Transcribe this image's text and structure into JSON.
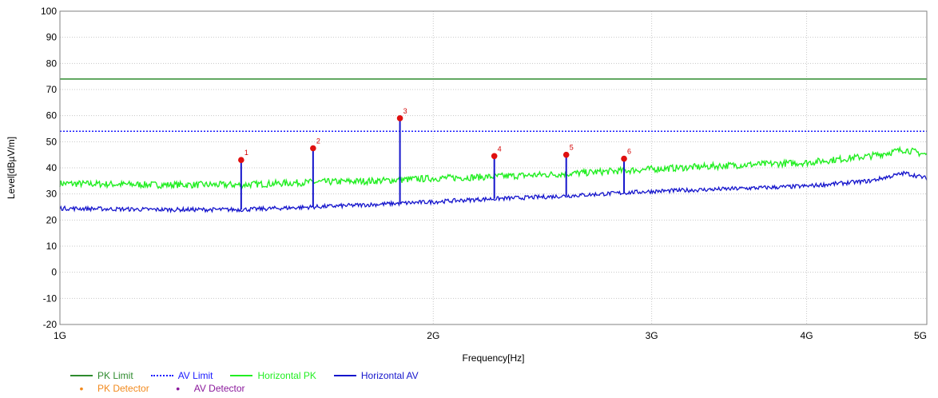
{
  "chart_data": {
    "type": "line",
    "xlabel": "Frequency[Hz]",
    "ylabel": "Level[dBµV/m]",
    "x_scale": "log",
    "xlim": [
      1000000000,
      5000000000
    ],
    "ylim": [
      -20,
      100
    ],
    "y_ticks": [
      100,
      90,
      80,
      70,
      60,
      50,
      40,
      30,
      20,
      10,
      0,
      -10,
      -20
    ],
    "x_ticks": [
      {
        "value": 1000000000,
        "label": "1G"
      },
      {
        "value": 2000000000,
        "label": "2G"
      },
      {
        "value": 3000000000,
        "label": "3G"
      },
      {
        "value": 4000000000,
        "label": "4G"
      },
      {
        "value": 5000000000,
        "label": "5G"
      }
    ],
    "grid": true,
    "legend_position": "bottom-left",
    "series": [
      {
        "name": "PK Limit",
        "color": "#2e8b2e",
        "style": "solid",
        "x": [
          1000000000,
          5000000000
        ],
        "values": [
          74,
          74
        ]
      },
      {
        "name": "AV Limit",
        "color": "#1a1aff",
        "style": "dotted",
        "x": [
          1000000000,
          5000000000
        ],
        "values": [
          54,
          54
        ]
      },
      {
        "name": "Horizontal PK",
        "color": "#22ee22",
        "style": "solid",
        "x": [
          1000000000,
          1200000000,
          1400000000,
          1600000000,
          1800000000,
          2000000000,
          2200000000,
          2500000000,
          3000000000,
          3500000000,
          4000000000,
          4500000000,
          4800000000,
          5000000000
        ],
        "values": [
          34,
          33.5,
          33.5,
          34.5,
          35,
          36,
          36.5,
          37.5,
          39.5,
          41,
          42,
          44.5,
          47,
          45
        ]
      },
      {
        "name": "Horizontal AV",
        "color": "#1515cc",
        "style": "solid",
        "x": [
          1000000000,
          1200000000,
          1400000000,
          1600000000,
          1800000000,
          2000000000,
          2200000000,
          2500000000,
          3000000000,
          3500000000,
          4000000000,
          4500000000,
          4800000000,
          5000000000
        ],
        "values": [
          24.5,
          24,
          24,
          25,
          26,
          27,
          28,
          29,
          31,
          32,
          33,
          35,
          38,
          36
        ]
      }
    ],
    "spikes": [
      {
        "label": "1",
        "x": 1400000000,
        "value": 43
      },
      {
        "label": "2",
        "x": 1600000000,
        "value": 47.5
      },
      {
        "label": "3",
        "x": 1880000000,
        "value": 59
      },
      {
        "label": "4",
        "x": 2240000000,
        "value": 44.5
      },
      {
        "label": "5",
        "x": 2560000000,
        "value": 45
      },
      {
        "label": "6",
        "x": 2850000000,
        "value": 43.5
      }
    ],
    "markers": [
      {
        "label": "1",
        "x": 1400000000,
        "value": 43
      },
      {
        "label": "2",
        "x": 1600000000,
        "value": 47.5
      },
      {
        "label": "3",
        "x": 1880000000,
        "value": 59
      },
      {
        "label": "4",
        "x": 2240000000,
        "value": 44.5
      },
      {
        "label": "5",
        "x": 2560000000,
        "value": 45
      },
      {
        "label": "6",
        "x": 2850000000,
        "value": 43.5
      }
    ],
    "marker_color": "#e01010"
  },
  "legend": {
    "items_row1": [
      {
        "label": "PK Limit",
        "color": "#2e8b2e",
        "style": "solid"
      },
      {
        "label": "AV Limit",
        "color": "#1a1aff",
        "style": "dotted"
      },
      {
        "label": "Horizontal PK",
        "color": "#22ee22",
        "style": "solid"
      },
      {
        "label": "Horizontal AV",
        "color": "#1515cc",
        "style": "solid"
      }
    ],
    "items_row2": [
      {
        "label": "PK Detector",
        "color": "#f28a1e"
      },
      {
        "label": "AV Detector",
        "color": "#8b1a9c"
      }
    ]
  }
}
